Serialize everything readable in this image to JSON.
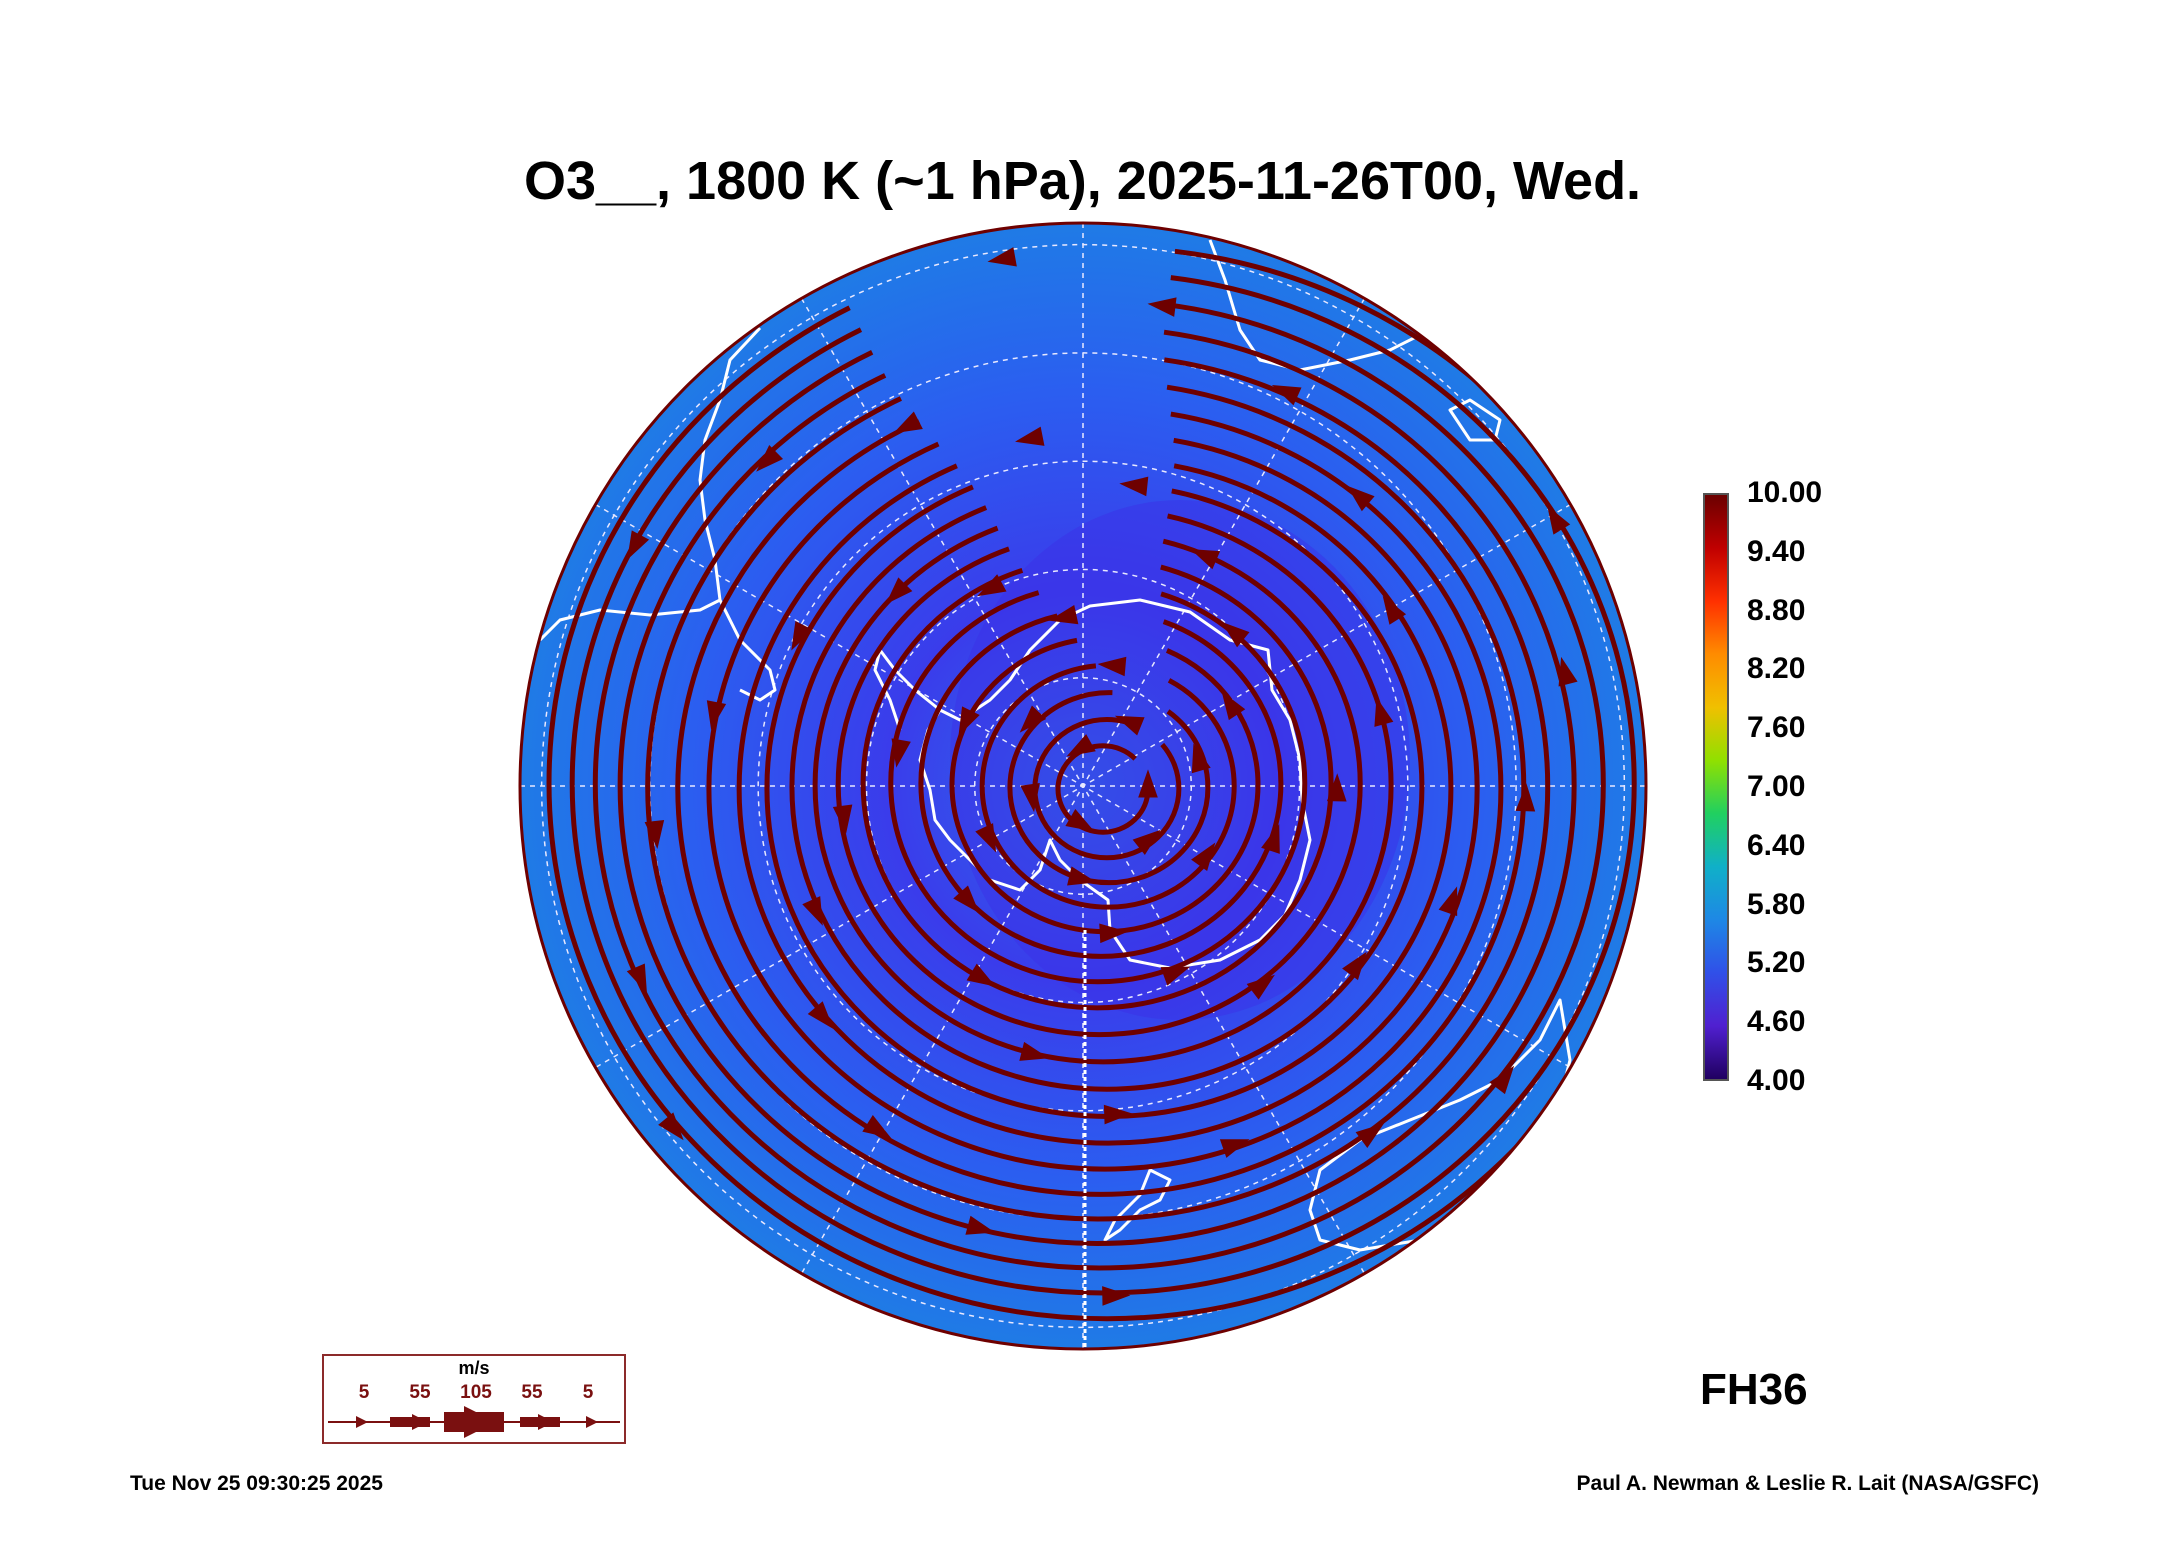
{
  "title": "O3__, 1800 K (~1 hPa), 2025-11-26T00, Wed.",
  "forecast_hour": "FH36",
  "colorbar": {
    "labels": [
      "10.00",
      "9.40",
      "8.80",
      "8.20",
      "7.60",
      "7.00",
      "6.40",
      "5.80",
      "5.20",
      "4.60",
      "4.00"
    ],
    "colors": [
      "#6b0000",
      "#c00000",
      "#ff3000",
      "#ff8c00",
      "#f0c000",
      "#90e000",
      "#20d060",
      "#10b0c8",
      "#1e88e5",
      "#3050e8",
      "#5020d0",
      "#200060"
    ]
  },
  "map": {
    "projection": "south-polar-stereographic",
    "field_colors": {
      "outer": "#1f7be6",
      "middle": "#2b5ef0",
      "inner": "#3a3ceb",
      "core": "#2f68ea"
    },
    "streamline_color": "#6e0000",
    "coastline_color": "#ffffff",
    "grid_color": "#e8e8ff"
  },
  "wind_legend": {
    "unit": "m/s",
    "speeds": [
      "5",
      "55",
      "105",
      "55",
      "5"
    ]
  },
  "footer": {
    "timestamp": "Tue Nov 25 09:30:25 2025",
    "credit": "Paul A. Newman & Leslie R. Lait (NASA/GSFC)"
  }
}
